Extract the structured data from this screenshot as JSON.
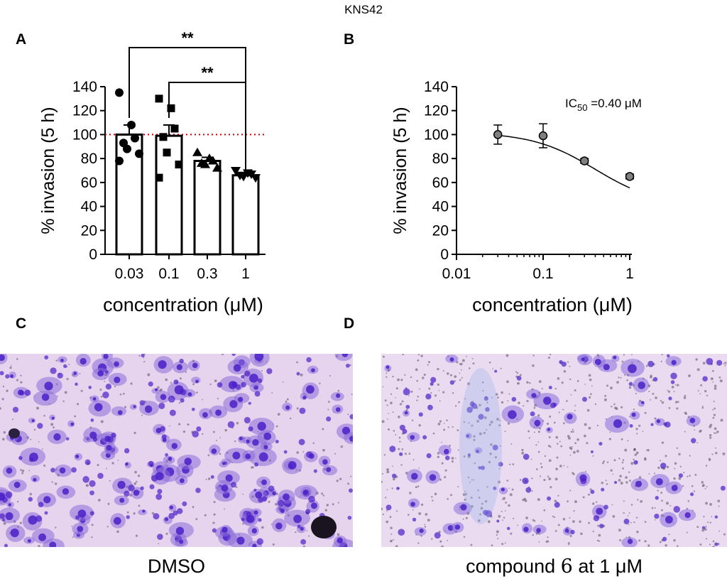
{
  "figure": {
    "title": "KNS42",
    "panel_labels": {
      "a": "A",
      "b": "B",
      "c": "C",
      "d": "D"
    }
  },
  "colors": {
    "reference_line": "#cc0000",
    "dose_point_fill": "#7f7f7f",
    "stain_dense": "#4b1ec8",
    "stain_light": "#8a6ed9"
  },
  "chart_data": [
    {
      "id": "A",
      "type": "bar",
      "ylabel": "% invasion (5 h)",
      "xlabel": "concentration (μM)",
      "categories": [
        "0.03",
        "0.1",
        "0.3",
        "1"
      ],
      "values": [
        100,
        99,
        78,
        66
      ],
      "sem": [
        8,
        9,
        3,
        2
      ],
      "individual_points": [
        [
          135,
          108,
          97,
          93,
          88,
          84,
          78
        ],
        [
          130,
          122,
          105,
          98,
          85,
          75,
          64
        ],
        [
          85,
          80,
          78,
          76,
          75,
          72
        ],
        [
          70,
          68,
          67,
          66,
          65,
          64
        ]
      ],
      "point_markers": [
        "circle",
        "square",
        "triangle-up",
        "triangle-down"
      ],
      "ylim": [
        0,
        140
      ],
      "yticks": [
        0,
        20,
        40,
        60,
        80,
        100,
        120,
        140
      ],
      "reference_line": 100,
      "significance": [
        {
          "from": "0.03",
          "to": "1",
          "label": "**"
        },
        {
          "from": "0.1",
          "to": "1",
          "label": "**"
        }
      ]
    },
    {
      "id": "B",
      "type": "scatter",
      "ylabel": "% invasion (5 h)",
      "xlabel": "concentration (μM)",
      "x_scale": "log",
      "xlim": [
        0.01,
        1
      ],
      "xticks": [
        "0.01",
        "0.1",
        "1"
      ],
      "ylim": [
        0,
        140
      ],
      "yticks": [
        0,
        20,
        40,
        60,
        80,
        100,
        120,
        140
      ],
      "x": [
        0.03,
        0.1,
        0.3,
        1
      ],
      "y": [
        100,
        99,
        78,
        65
      ],
      "err": [
        8,
        10,
        2,
        2
      ],
      "fit": "sigmoidal curve",
      "annotation": {
        "prefix": "IC",
        "subscript": "50",
        "suffix": " =0.40 μM"
      }
    }
  ],
  "images": {
    "c": {
      "caption": "DMSO"
    },
    "d": {
      "caption_pre": "compound ",
      "caption_num": "6",
      "caption_post": " at 1 μM"
    }
  }
}
